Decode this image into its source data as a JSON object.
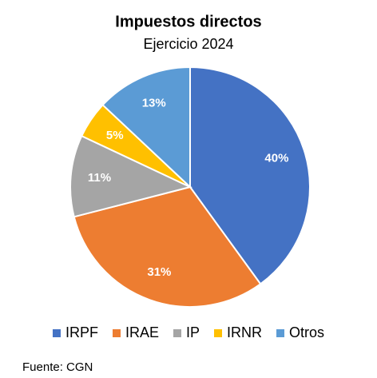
{
  "chart_data": {
    "type": "pie",
    "title": "Impuestos directos",
    "subtitle": "Ejercicio 2024",
    "categories": [
      "IRPF",
      "IRAE",
      "IP",
      "IRNR",
      "Otros"
    ],
    "values": [
      40,
      31,
      11,
      5,
      13
    ],
    "value_labels": [
      "40%",
      "31%",
      "11%",
      "5%",
      "13%"
    ],
    "colors": [
      "#4472c4",
      "#ed7d31",
      "#a5a5a5",
      "#ffc000",
      "#5b9bd5"
    ],
    "legend": "bottom",
    "source": "Fuente: CGN"
  }
}
